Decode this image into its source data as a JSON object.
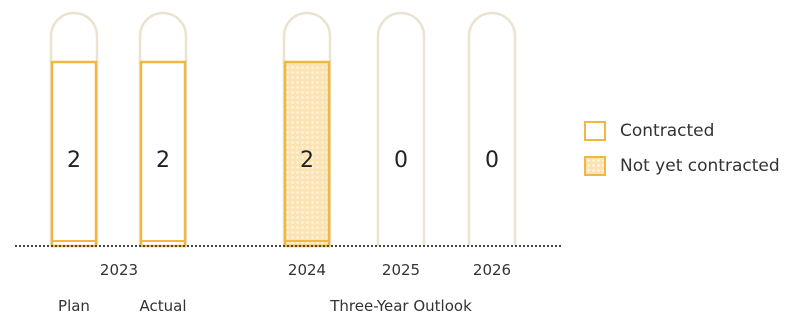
{
  "chart_data": {
    "type": "bar",
    "title": "",
    "categories": [
      "2023 Plan",
      "2023 Actual",
      "2024",
      "2025",
      "2026"
    ],
    "series": [
      {
        "name": "Contracted",
        "values": [
          2,
          2,
          0,
          0,
          0
        ]
      },
      {
        "name": "Not yet contracted",
        "values": [
          0,
          0,
          2,
          0,
          0
        ]
      }
    ],
    "value_labels": [
      "2",
      "2",
      "2",
      "0",
      "0"
    ],
    "year_labels": [
      "2023",
      "2024",
      "2025",
      "2026"
    ],
    "group_labels": [
      "Plan",
      "Actual",
      "Three-Year Outlook"
    ],
    "ylim": [
      0,
      2
    ],
    "grid": false,
    "legend_position": "right"
  },
  "legend": {
    "contracted": "Contracted",
    "not_contracted": "Not yet contracted"
  },
  "colors": {
    "accent": "#f0b840",
    "outline": "#ece2d2",
    "dot_fill": "#fbe3b4",
    "baseline": "#444444"
  }
}
